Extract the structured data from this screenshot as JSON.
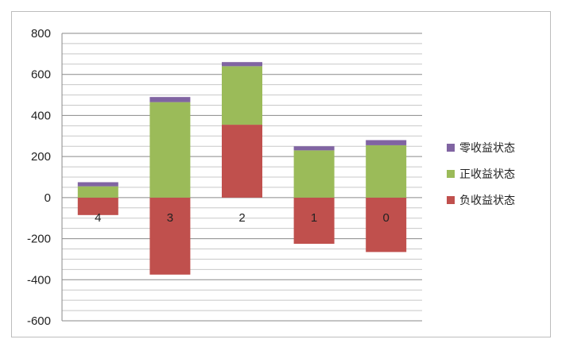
{
  "chart_data": {
    "type": "bar",
    "stacked": true,
    "categories": [
      "4",
      "3",
      "2",
      "1",
      "0"
    ],
    "series": [
      {
        "name": "负收益状态",
        "color": "#c0504d",
        "values": [
          -85,
          -375,
          355,
          -225,
          -265
        ]
      },
      {
        "name": "正收益状态",
        "color": "#9bbb59",
        "values": [
          55,
          465,
          285,
          230,
          255
        ]
      },
      {
        "name": "零收益状态",
        "color": "#8064a2",
        "values": [
          20,
          25,
          20,
          20,
          25
        ]
      }
    ],
    "ylim": [
      -600,
      800
    ],
    "yticks": [
      "800",
      "600",
      "400",
      "200",
      "0",
      "-200",
      "-400",
      "-600"
    ],
    "title": "",
    "xlabel": "",
    "ylabel": "",
    "grid": true,
    "legend_position": "right"
  }
}
